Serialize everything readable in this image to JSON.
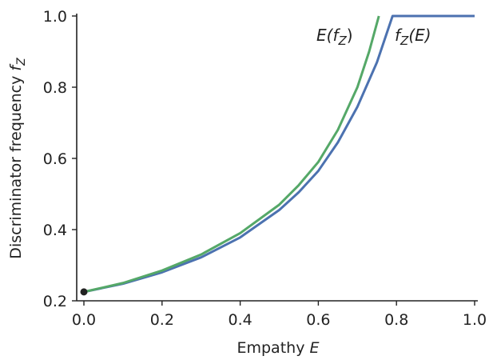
{
  "chart_data": {
    "type": "line",
    "xlabel": "Empathy",
    "xlabel_var": "E",
    "ylabel": "Discriminator frequency",
    "ylabel_var": "f",
    "ylabel_sub": "Z",
    "xlim": [
      0.0,
      1.0
    ],
    "ylim": [
      0.2,
      1.0
    ],
    "xticks": [
      0.0,
      0.2,
      0.4,
      0.6,
      0.8,
      1.0
    ],
    "xtick_labels": [
      "0.0",
      "0.2",
      "0.4",
      "0.6",
      "0.8",
      "1.0"
    ],
    "yticks": [
      0.2,
      0.4,
      0.6,
      0.8,
      1.0
    ],
    "ytick_labels": [
      "0.2",
      "0.4",
      "0.6",
      "0.8",
      "1.0"
    ],
    "grid": false,
    "legend": "none",
    "series": [
      {
        "name": "E(f_Z)",
        "label_parts": [
          "E(f",
          "Z",
          ")"
        ],
        "color": "#55a868",
        "x": [
          0.0,
          0.1,
          0.2,
          0.3,
          0.4,
          0.5,
          0.55,
          0.6,
          0.65,
          0.7,
          0.73,
          0.755
        ],
        "y": [
          0.225,
          0.25,
          0.285,
          0.33,
          0.39,
          0.47,
          0.525,
          0.59,
          0.68,
          0.8,
          0.9,
          1.0
        ]
      },
      {
        "name": "f_Z(E)",
        "label_parts": [
          "f",
          "Z",
          "(E)"
        ],
        "color": "#4c72b0",
        "x": [
          0.0,
          0.1,
          0.2,
          0.3,
          0.4,
          0.5,
          0.55,
          0.6,
          0.65,
          0.7,
          0.75,
          0.79,
          1.0
        ],
        "y": [
          0.225,
          0.248,
          0.28,
          0.322,
          0.378,
          0.455,
          0.505,
          0.565,
          0.645,
          0.745,
          0.87,
          1.0,
          1.0
        ]
      }
    ],
    "start_point": {
      "x": 0.0,
      "y": 0.225,
      "color": "#222222"
    }
  }
}
